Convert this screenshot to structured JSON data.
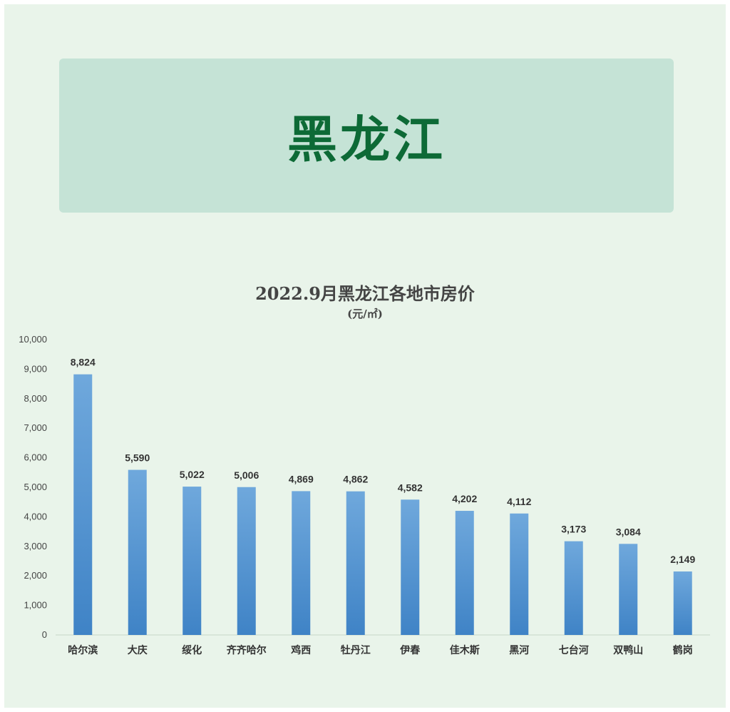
{
  "banner": {
    "title": "黑龙江"
  },
  "colors": {
    "bar": "#5b9bd5",
    "banner_bg": "#c5e3d6",
    "banner_text": "#0d6a36",
    "page_bg": "#e9f4ea"
  },
  "chart_data": {
    "type": "bar",
    "title": "2022.9月黑龙江各地市房价",
    "subtitle": "(元/㎡)",
    "xlabel": "",
    "ylabel": "",
    "ylim": [
      0,
      10000
    ],
    "ytick_labels": [
      "0",
      "1,000",
      "2,000",
      "3,000",
      "4,000",
      "5,000",
      "6,000",
      "7,000",
      "8,000",
      "9,000",
      "10,000"
    ],
    "grid": false,
    "legend": "none",
    "categories": [
      "哈尔滨",
      "大庆",
      "绥化",
      "齐齐哈尔",
      "鸡西",
      "牡丹江",
      "伊春",
      "佳木斯",
      "黑河",
      "七台河",
      "双鸭山",
      "鹤岗"
    ],
    "values": [
      8824,
      5590,
      5022,
      5006,
      4869,
      4862,
      4582,
      4202,
      4112,
      3173,
      3084,
      2149
    ],
    "value_labels": [
      "8,824",
      "5,590",
      "5,022",
      "5,006",
      "4,869",
      "4,862",
      "4,582",
      "4,202",
      "4,112",
      "3,173",
      "3,084",
      "2,149"
    ]
  }
}
